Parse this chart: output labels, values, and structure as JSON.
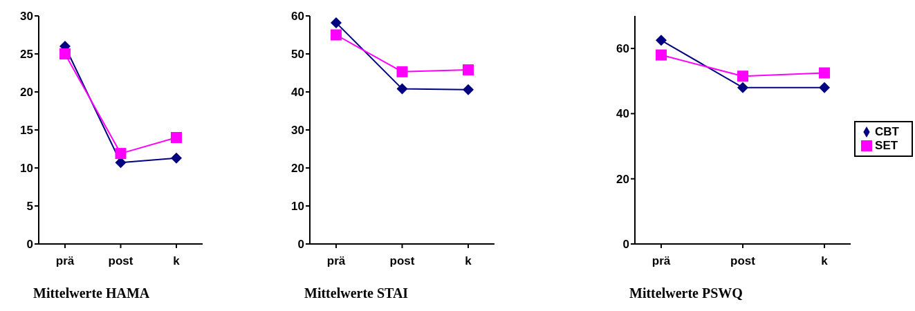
{
  "chart_data": [
    {
      "type": "line",
      "title": "Mittelwerte HAMA",
      "categories": [
        "prä",
        "post",
        "k"
      ],
      "ylim": [
        0,
        30
      ],
      "yticks": [
        0,
        5,
        10,
        15,
        20,
        25,
        30
      ],
      "grid": false,
      "legend": false,
      "series": [
        {
          "color": "#000080",
          "marker": "diamond",
          "values": [
            26,
            10.7,
            11.3
          ]
        },
        {
          "color": "#ff00ff",
          "marker": "square",
          "values": [
            25,
            11.9,
            14
          ]
        }
      ]
    },
    {
      "type": "line",
      "title": "Mittelwerte STAI",
      "categories": [
        "prä",
        "post",
        "k"
      ],
      "ylim": [
        0,
        60
      ],
      "yticks": [
        0,
        10,
        20,
        30,
        40,
        50,
        60
      ],
      "grid": false,
      "legend": false,
      "series": [
        {
          "color": "#000080",
          "marker": "diamond",
          "values": [
            58.2,
            40.8,
            40.6
          ]
        },
        {
          "color": "#ff00ff",
          "marker": "square",
          "values": [
            55,
            45.3,
            45.8
          ]
        }
      ]
    },
    {
      "type": "line",
      "title": "Mittelwerte PSWQ",
      "categories": [
        "prä",
        "post",
        "k"
      ],
      "ylim": [
        0,
        70
      ],
      "yticks": [
        0,
        20,
        40,
        60
      ],
      "grid": false,
      "legend": "right",
      "series": [
        {
          "name": "CBT",
          "color": "#000080",
          "marker": "diamond",
          "values": [
            62.5,
            48,
            48
          ]
        },
        {
          "name": "SET",
          "color": "#ff00ff",
          "marker": "square",
          "values": [
            58,
            51.5,
            52.5
          ]
        }
      ]
    }
  ]
}
